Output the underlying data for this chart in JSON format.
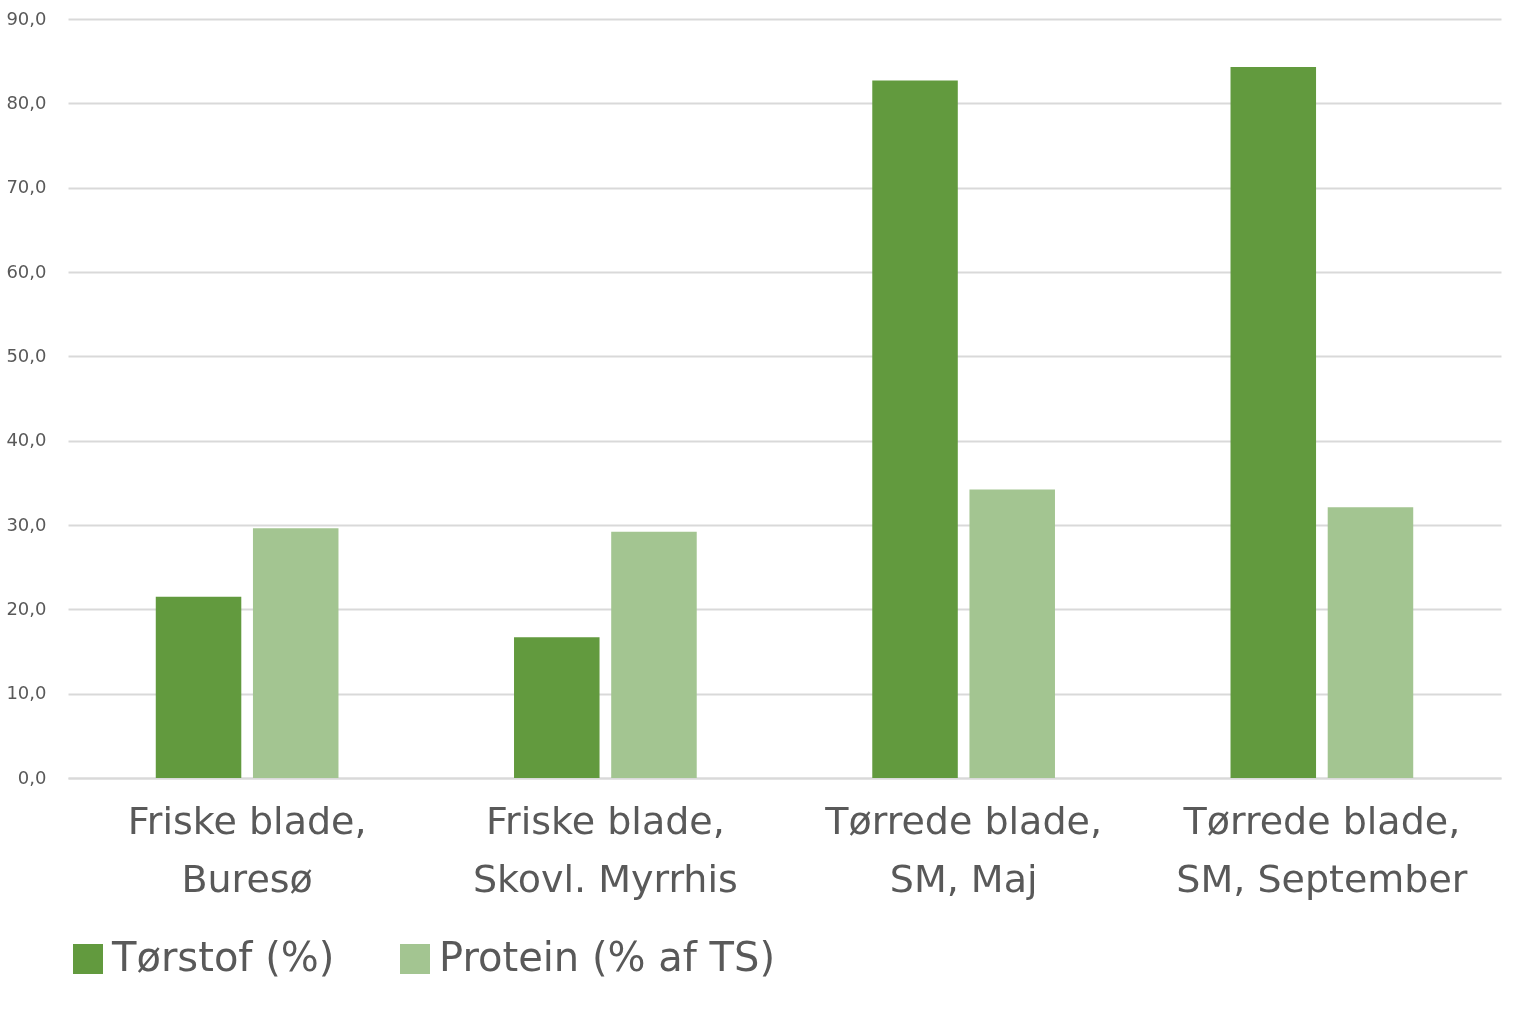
{
  "chart_data": {
    "type": "bar",
    "categories": [
      "Friske blade, Buresø",
      "Friske blade, Skovl. Myrrhis",
      "Tørrede blade, SM, Maj",
      "Tørrede blade, SM, September"
    ],
    "series": [
      {
        "name": "Tørstof (%)",
        "color": "#629a3e",
        "values": [
          21.5,
          16.7,
          82.7,
          84.3
        ]
      },
      {
        "name": "Protein (% af TS)",
        "color": "#a3c591",
        "values": [
          29.6,
          29.2,
          34.2,
          32.1
        ]
      }
    ],
    "ylim": [
      0,
      90
    ],
    "yticks": [
      {
        "value": 0,
        "label": "0,0"
      },
      {
        "value": 10,
        "label": "10,0"
      },
      {
        "value": 20,
        "label": "20,0"
      },
      {
        "value": 30,
        "label": "30,0"
      },
      {
        "value": 40,
        "label": "40,0"
      },
      {
        "value": 50,
        "label": "50,0"
      },
      {
        "value": 60,
        "label": "60,0"
      },
      {
        "value": 70,
        "label": "70,0"
      },
      {
        "value": 80,
        "label": "80,0"
      },
      {
        "value": 90,
        "label": "90,0"
      }
    ],
    "grid": "y",
    "legend": "bottom"
  }
}
